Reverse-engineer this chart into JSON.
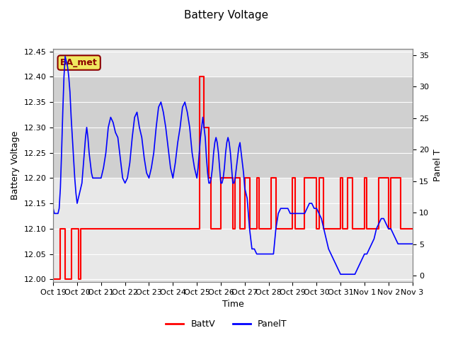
{
  "title": "Battery Voltage",
  "xlabel": "Time",
  "ylabel_left": "Battery Voltage",
  "ylabel_right": "Panel T",
  "xlim_start": 0,
  "xlim_end": 15,
  "ylim_left": [
    11.995,
    12.455
  ],
  "ylim_right": [
    -1,
    36
  ],
  "yticks_left": [
    12.0,
    12.05,
    12.1,
    12.15,
    12.2,
    12.25,
    12.3,
    12.35,
    12.4,
    12.45
  ],
  "yticks_right": [
    0,
    5,
    10,
    15,
    20,
    25,
    30,
    35
  ],
  "xtick_labels": [
    "Oct 19",
    "Oct 20",
    "Oct 21",
    "Oct 22",
    "Oct 23",
    "Oct 24",
    "Oct 25",
    "Oct 26",
    "Oct 27",
    "Oct 28",
    "Oct 29",
    "Oct 30",
    "Oct 31",
    "Nov 1",
    "Nov 2",
    "Nov 3"
  ],
  "xtick_positions": [
    0,
    1,
    2,
    3,
    4,
    5,
    6,
    7,
    8,
    9,
    10,
    11,
    12,
    13,
    14,
    15
  ],
  "annotation_text": "BA_met",
  "background_color": "#ffffff",
  "plot_bg_color": "#e8e8e8",
  "band_color": "#d0d0d0",
  "band_y1": 12.2,
  "band_y2": 12.4,
  "grid_color": "#ffffff",
  "battv_color": "#ff0000",
  "panelt_color": "#0000ff",
  "legend_battv": "BattV",
  "legend_panelt": "PanelT",
  "battv_x": [
    0.0,
    0.0,
    0.3,
    0.3,
    0.5,
    0.5,
    0.75,
    0.75,
    1.0,
    1.0,
    1.05,
    1.05,
    1.15,
    1.15,
    1.2,
    1.2,
    1.5,
    1.5,
    2.0,
    2.0,
    3.0,
    3.0,
    4.0,
    4.0,
    5.0,
    5.0,
    6.0,
    6.0,
    6.1,
    6.1,
    6.3,
    6.3,
    6.5,
    6.5,
    6.6,
    6.6,
    6.8,
    6.8,
    7.0,
    7.0,
    7.5,
    7.5,
    7.6,
    7.6,
    7.8,
    7.8,
    8.0,
    8.0,
    8.2,
    8.2,
    8.5,
    8.5,
    8.6,
    8.6,
    9.0,
    9.0,
    9.1,
    9.1,
    9.3,
    9.3,
    9.5,
    9.5,
    10.0,
    10.0,
    10.1,
    10.1,
    10.5,
    10.5,
    11.0,
    11.0,
    11.1,
    11.1,
    11.3,
    11.3,
    11.5,
    11.5,
    12.0,
    12.0,
    12.1,
    12.1,
    12.3,
    12.3,
    12.5,
    12.5,
    13.0,
    13.0,
    13.1,
    13.1,
    13.5,
    13.5,
    13.6,
    13.6,
    14.0,
    14.0,
    14.1,
    14.1,
    14.5,
    14.5,
    15.0
  ],
  "battv_y": [
    12.1,
    12.0,
    12.0,
    12.1,
    12.1,
    12.0,
    12.0,
    12.1,
    12.1,
    12.1,
    12.1,
    12.0,
    12.0,
    12.1,
    12.1,
    12.1,
    12.1,
    12.1,
    12.1,
    12.1,
    12.1,
    12.1,
    12.1,
    12.1,
    12.1,
    12.1,
    12.1,
    12.1,
    12.1,
    12.4,
    12.4,
    12.3,
    12.3,
    12.2,
    12.2,
    12.1,
    12.1,
    12.1,
    12.1,
    12.2,
    12.2,
    12.1,
    12.1,
    12.2,
    12.2,
    12.1,
    12.1,
    12.2,
    12.2,
    12.1,
    12.1,
    12.2,
    12.2,
    12.1,
    12.1,
    12.1,
    12.1,
    12.2,
    12.2,
    12.1,
    12.1,
    12.1,
    12.1,
    12.2,
    12.2,
    12.1,
    12.1,
    12.2,
    12.2,
    12.1,
    12.1,
    12.2,
    12.2,
    12.1,
    12.1,
    12.1,
    12.1,
    12.2,
    12.2,
    12.1,
    12.1,
    12.2,
    12.2,
    12.1,
    12.1,
    12.2,
    12.2,
    12.1,
    12.1,
    12.1,
    12.1,
    12.2,
    12.2,
    12.1,
    12.1,
    12.2,
    12.2,
    12.1,
    12.1
  ],
  "panelt_x": [
    0.0,
    0.05,
    0.1,
    0.15,
    0.2,
    0.25,
    0.3,
    0.35,
    0.4,
    0.45,
    0.5,
    0.55,
    0.6,
    0.65,
    0.7,
    0.75,
    0.8,
    0.85,
    0.9,
    0.95,
    1.0,
    1.05,
    1.1,
    1.15,
    1.2,
    1.25,
    1.3,
    1.35,
    1.4,
    1.45,
    1.5,
    1.55,
    1.6,
    1.65,
    1.7,
    1.75,
    1.8,
    1.85,
    1.9,
    1.95,
    2.0,
    2.1,
    2.2,
    2.3,
    2.4,
    2.5,
    2.6,
    2.7,
    2.8,
    2.9,
    3.0,
    3.1,
    3.2,
    3.3,
    3.4,
    3.5,
    3.6,
    3.7,
    3.8,
    3.9,
    4.0,
    4.1,
    4.2,
    4.3,
    4.4,
    4.5,
    4.6,
    4.7,
    4.8,
    4.9,
    5.0,
    5.1,
    5.2,
    5.3,
    5.4,
    5.5,
    5.6,
    5.7,
    5.8,
    5.9,
    6.0,
    6.05,
    6.1,
    6.15,
    6.2,
    6.25,
    6.3,
    6.35,
    6.4,
    6.45,
    6.5,
    6.55,
    6.6,
    6.65,
    6.7,
    6.75,
    6.8,
    6.85,
    6.9,
    6.95,
    7.0,
    7.05,
    7.1,
    7.15,
    7.2,
    7.25,
    7.3,
    7.35,
    7.4,
    7.45,
    7.5,
    7.55,
    7.6,
    7.65,
    7.7,
    7.75,
    7.8,
    7.85,
    7.9,
    7.95,
    8.0,
    8.1,
    8.2,
    8.3,
    8.4,
    8.5,
    8.6,
    8.7,
    8.8,
    8.9,
    9.0,
    9.1,
    9.2,
    9.3,
    9.4,
    9.5,
    9.6,
    9.7,
    9.8,
    9.9,
    10.0,
    10.1,
    10.2,
    10.3,
    10.4,
    10.5,
    10.6,
    10.7,
    10.8,
    10.9,
    11.0,
    11.1,
    11.2,
    11.3,
    11.4,
    11.5,
    11.6,
    11.7,
    11.8,
    11.9,
    12.0,
    12.1,
    12.2,
    12.3,
    12.4,
    12.5,
    12.6,
    12.7,
    12.8,
    12.9,
    13.0,
    13.1,
    13.2,
    13.3,
    13.4,
    13.5,
    13.6,
    13.7,
    13.8,
    13.9,
    14.0,
    14.1,
    14.2,
    14.3,
    14.4,
    14.5,
    14.6,
    14.7,
    14.8,
    14.9,
    15.0
  ],
  "panelt_y": [
    12.14,
    12.13,
    12.13,
    12.13,
    12.13,
    12.14,
    12.18,
    12.25,
    12.33,
    12.4,
    12.44,
    12.43,
    12.42,
    12.4,
    12.37,
    12.32,
    12.28,
    12.24,
    12.2,
    12.17,
    12.15,
    12.16,
    12.17,
    12.18,
    12.19,
    12.22,
    12.25,
    12.28,
    12.3,
    12.28,
    12.25,
    12.23,
    12.21,
    12.2,
    12.2,
    12.2,
    12.2,
    12.2,
    12.2,
    12.2,
    12.2,
    12.22,
    12.25,
    12.3,
    12.32,
    12.31,
    12.29,
    12.28,
    12.24,
    12.2,
    12.19,
    12.2,
    12.23,
    12.28,
    12.32,
    12.33,
    12.3,
    12.28,
    12.24,
    12.21,
    12.2,
    12.22,
    12.25,
    12.3,
    12.34,
    12.35,
    12.33,
    12.3,
    12.26,
    12.22,
    12.2,
    12.23,
    12.27,
    12.3,
    12.34,
    12.35,
    12.33,
    12.3,
    12.25,
    12.22,
    12.2,
    12.22,
    12.25,
    12.28,
    12.3,
    12.32,
    12.3,
    12.28,
    12.24,
    12.21,
    12.19,
    12.19,
    12.2,
    12.22,
    12.25,
    12.27,
    12.28,
    12.27,
    12.25,
    12.22,
    12.19,
    12.19,
    12.2,
    12.22,
    12.25,
    12.27,
    12.28,
    12.27,
    12.25,
    12.22,
    12.19,
    12.19,
    12.2,
    12.22,
    12.24,
    12.26,
    12.27,
    12.25,
    12.23,
    12.21,
    12.18,
    12.16,
    12.1,
    12.06,
    12.06,
    12.05,
    12.05,
    12.05,
    12.05,
    12.05,
    12.05,
    12.05,
    12.05,
    12.1,
    12.13,
    12.14,
    12.14,
    12.14,
    12.14,
    12.13,
    12.13,
    12.13,
    12.13,
    12.13,
    12.13,
    12.13,
    12.14,
    12.15,
    12.15,
    12.14,
    12.14,
    12.13,
    12.12,
    12.1,
    12.08,
    12.06,
    12.05,
    12.04,
    12.03,
    12.02,
    12.01,
    12.01,
    12.01,
    12.01,
    12.01,
    12.01,
    12.01,
    12.02,
    12.03,
    12.04,
    12.05,
    12.05,
    12.06,
    12.07,
    12.08,
    12.1,
    12.11,
    12.12,
    12.12,
    12.11,
    12.1,
    12.1,
    12.09,
    12.08,
    12.07,
    12.07,
    12.07,
    12.07,
    12.07,
    12.07,
    12.07
  ]
}
